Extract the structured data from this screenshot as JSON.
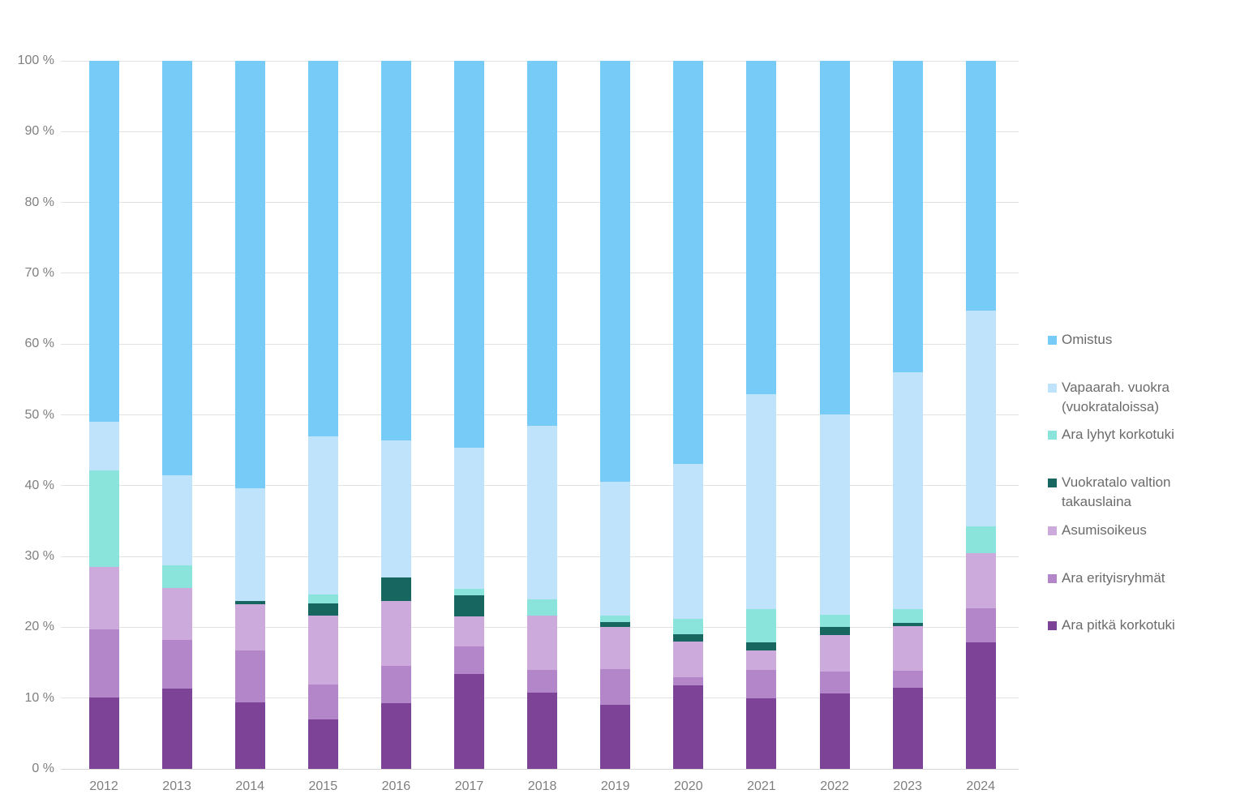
{
  "chart_data": {
    "type": "bar",
    "variant": "stacked-100-percent",
    "title": "",
    "xlabel": "",
    "ylabel": "",
    "ylim": [
      0,
      100
    ],
    "grid": true,
    "legend_position": "right",
    "y_ticks": [
      "0 %",
      "10 %",
      "20 %",
      "30 %",
      "40 %",
      "50 %",
      "60 %",
      "70 %",
      "80 %",
      "90 %",
      "100 %"
    ],
    "categories": [
      "2012",
      "2013",
      "2014",
      "2015",
      "2016",
      "2017",
      "2018",
      "2019",
      "2020",
      "2021",
      "2022",
      "2023",
      "2024"
    ],
    "series": [
      {
        "name": "Ara pitkä korkotuki",
        "color": "#7d4396",
        "values": [
          10.1,
          11.3,
          9.4,
          7.0,
          9.3,
          13.4,
          10.8,
          9.1,
          11.8,
          10.0,
          10.6,
          11.4,
          17.9
        ]
      },
      {
        "name": "Ara erityisryhmät",
        "color": "#b286c8",
        "values": [
          9.6,
          6.9,
          7.3,
          4.9,
          5.2,
          3.9,
          3.2,
          5.0,
          1.2,
          4.0,
          3.1,
          2.5,
          4.8
        ]
      },
      {
        "name": "Asumisoikeus",
        "color": "#cdaadc",
        "values": [
          8.8,
          7.4,
          6.5,
          9.8,
          9.2,
          4.2,
          7.6,
          5.9,
          5.0,
          2.7,
          5.2,
          6.3,
          7.8
        ]
      },
      {
        "name": "Vuokratalo valtion takauslaina",
        "color": "#176760",
        "values": [
          0,
          0,
          0.5,
          1.7,
          3.3,
          3.0,
          0,
          0.7,
          1.0,
          1.2,
          1.2,
          0.4,
          0
        ]
      },
      {
        "name": "Ara lyhyt korkotuki",
        "color": "#8be4dc",
        "values": [
          13.6,
          3.2,
          0,
          1.2,
          0,
          0.9,
          2.3,
          0.9,
          2.2,
          4.7,
          1.7,
          2.0,
          3.8
        ]
      },
      {
        "name": "Vapaarah. vuokra (vuokrataloissa)",
        "color": "#bee3fa",
        "values": [
          6.9,
          12.7,
          15.9,
          22.4,
          19.4,
          20.0,
          24.6,
          18.9,
          21.9,
          30.3,
          28.3,
          33.4,
          30.4
        ]
      },
      {
        "name": "Omistus",
        "color": "#76cbf7",
        "values": [
          51.0,
          58.5,
          60.4,
          53.0,
          53.6,
          54.6,
          51.5,
          59.5,
          56.9,
          47.1,
          49.9,
          44.0,
          35.3
        ]
      }
    ],
    "legend": [
      {
        "series": "Omistus",
        "lines": [
          "Omistus"
        ]
      },
      {
        "series": "Vapaarah. vuokra (vuokrataloissa)",
        "lines": [
          "Vapaarah. vuokra",
          "(vuokrataloissa)"
        ]
      },
      {
        "series": "Ara lyhyt korkotuki",
        "lines": [
          "Ara lyhyt korkotuki"
        ]
      },
      {
        "series": "Vuokratalo valtion takauslaina",
        "lines": [
          "Vuokratalo valtion",
          "takauslaina"
        ]
      },
      {
        "series": "Asumisoikeus",
        "lines": [
          "Asumisoikeus"
        ]
      },
      {
        "series": "Ara erityisryhmät",
        "lines": [
          "Ara erityisryhmät"
        ]
      },
      {
        "series": "Ara pitkä korkotuki",
        "lines": [
          "Ara pitkä korkotuki"
        ]
      }
    ]
  }
}
